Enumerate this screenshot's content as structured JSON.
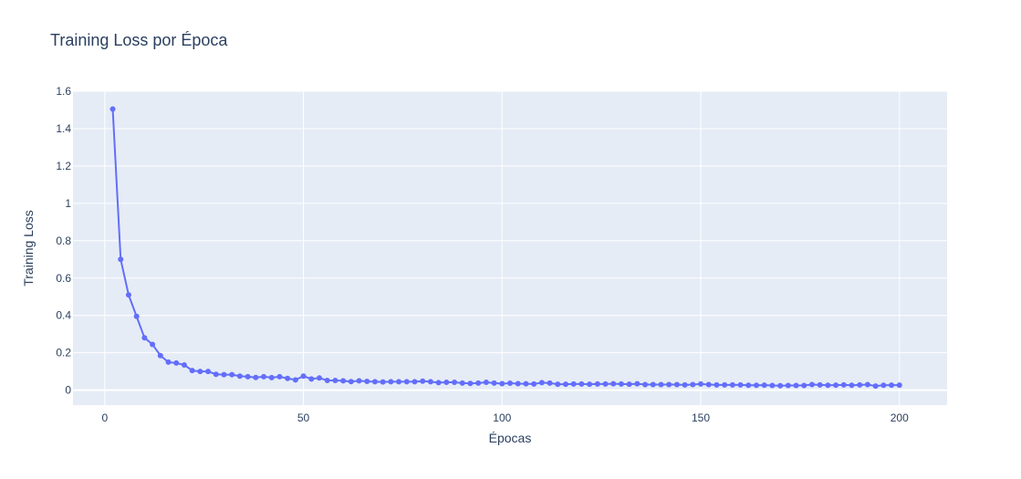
{
  "chart_data": {
    "type": "line",
    "title": "Training Loss por Época",
    "xlabel": "Épocas",
    "ylabel": "Training Loss",
    "xlim": [
      -8,
      212
    ],
    "ylim": [
      -0.08,
      1.6
    ],
    "x_ticks": [
      0,
      50,
      100,
      150,
      200
    ],
    "y_ticks": [
      0,
      0.2,
      0.4,
      0.6,
      0.8,
      1,
      1.2,
      1.4,
      1.6
    ],
    "x_tick_labels": [
      "0",
      "50",
      "100",
      "150",
      "200"
    ],
    "y_tick_labels": [
      "0",
      "0.2",
      "0.4",
      "0.6",
      "0.8",
      "1",
      "1.2",
      "1.4",
      "1.6"
    ],
    "grid": true,
    "series": [
      {
        "color": "#636efa",
        "x": [
          2,
          4,
          6,
          8,
          10,
          12,
          14,
          16,
          18,
          20,
          22,
          24,
          26,
          28,
          30,
          32,
          34,
          36,
          38,
          40,
          42,
          44,
          46,
          48,
          50,
          52,
          54,
          56,
          58,
          60,
          62,
          64,
          66,
          68,
          70,
          72,
          74,
          76,
          78,
          80,
          82,
          84,
          86,
          88,
          90,
          92,
          94,
          96,
          98,
          100,
          102,
          104,
          106,
          108,
          110,
          112,
          114,
          116,
          118,
          120,
          122,
          124,
          126,
          128,
          130,
          132,
          134,
          136,
          138,
          140,
          142,
          144,
          146,
          148,
          150,
          152,
          154,
          156,
          158,
          160,
          162,
          164,
          166,
          168,
          170,
          172,
          174,
          176,
          178,
          180,
          182,
          184,
          186,
          188,
          190,
          192,
          194,
          196,
          198,
          200
        ],
        "y": [
          1.505,
          0.7,
          0.51,
          0.395,
          0.28,
          0.245,
          0.185,
          0.15,
          0.145,
          0.135,
          0.105,
          0.1,
          0.1,
          0.085,
          0.083,
          0.083,
          0.075,
          0.072,
          0.068,
          0.072,
          0.067,
          0.072,
          0.063,
          0.055,
          0.075,
          0.06,
          0.065,
          0.052,
          0.052,
          0.05,
          0.046,
          0.05,
          0.047,
          0.045,
          0.044,
          0.045,
          0.045,
          0.045,
          0.045,
          0.048,
          0.045,
          0.04,
          0.042,
          0.042,
          0.038,
          0.036,
          0.038,
          0.042,
          0.038,
          0.035,
          0.037,
          0.035,
          0.034,
          0.033,
          0.04,
          0.038,
          0.032,
          0.032,
          0.033,
          0.033,
          0.032,
          0.033,
          0.033,
          0.034,
          0.033,
          0.032,
          0.034,
          0.03,
          0.03,
          0.03,
          0.03,
          0.03,
          0.028,
          0.03,
          0.033,
          0.03,
          0.028,
          0.028,
          0.028,
          0.028,
          0.026,
          0.026,
          0.027,
          0.025,
          0.024,
          0.025,
          0.025,
          0.025,
          0.03,
          0.028,
          0.026,
          0.027,
          0.028,
          0.026,
          0.028,
          0.03,
          0.022,
          0.026,
          0.027,
          0.027
        ]
      }
    ]
  }
}
